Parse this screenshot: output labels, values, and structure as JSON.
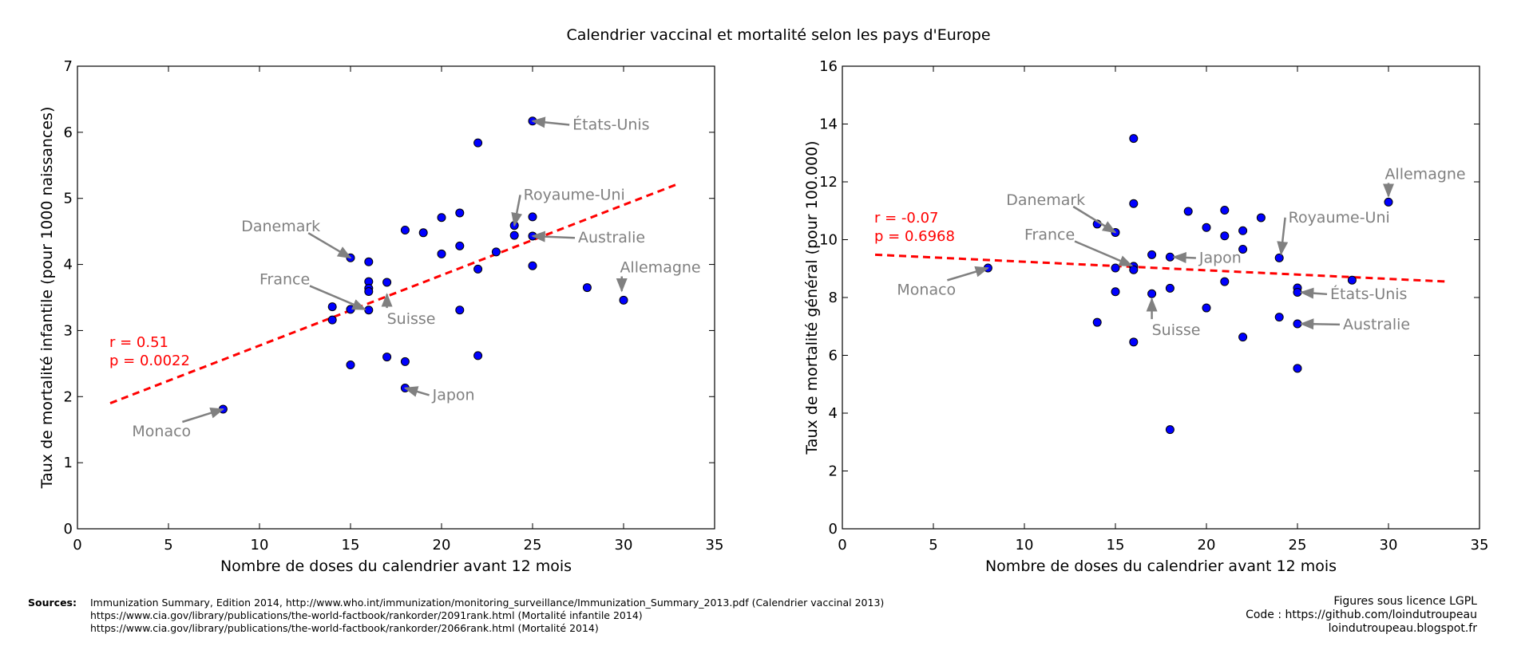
{
  "title": "Calendrier vaccinal et mortalité selon les pays d'Europe",
  "colors": {
    "point": "#0000ff",
    "regression": "#ff0000",
    "annotation": "#808080",
    "stats_text": "#ff0000"
  },
  "chart_data": [
    {
      "type": "scatter",
      "xlabel": "Nombre de doses du calendrier avant 12 mois",
      "ylabel": "Taux de mortalité infantile (pour 1000 naissances)",
      "xlim": [
        0,
        35
      ],
      "ylim": [
        0,
        7
      ],
      "xticks": [
        0,
        5,
        10,
        15,
        20,
        25,
        30,
        35
      ],
      "yticks": [
        0,
        1,
        2,
        3,
        4,
        5,
        6,
        7
      ],
      "grid": false,
      "stats": {
        "r": "r = 0.51",
        "p": "p = 0.0022"
      },
      "regression_line": {
        "x": [
          1.8,
          33
        ],
        "y": [
          1.9,
          5.22
        ]
      },
      "points": [
        {
          "x": 8,
          "y": 1.81
        },
        {
          "x": 14,
          "y": 3.16
        },
        {
          "x": 14,
          "y": 3.36
        },
        {
          "x": 15,
          "y": 4.1
        },
        {
          "x": 15,
          "y": 3.32
        },
        {
          "x": 15,
          "y": 2.48
        },
        {
          "x": 16,
          "y": 4.04
        },
        {
          "x": 16,
          "y": 3.74
        },
        {
          "x": 16,
          "y": 3.64
        },
        {
          "x": 16,
          "y": 3.59
        },
        {
          "x": 16,
          "y": 3.31
        },
        {
          "x": 17,
          "y": 3.73
        },
        {
          "x": 17,
          "y": 2.6
        },
        {
          "x": 18,
          "y": 4.52
        },
        {
          "x": 18,
          "y": 2.53
        },
        {
          "x": 18,
          "y": 2.13
        },
        {
          "x": 19,
          "y": 4.48
        },
        {
          "x": 20,
          "y": 4.71
        },
        {
          "x": 20,
          "y": 4.16
        },
        {
          "x": 21,
          "y": 4.78
        },
        {
          "x": 21,
          "y": 4.28
        },
        {
          "x": 21,
          "y": 3.31
        },
        {
          "x": 22,
          "y": 5.84
        },
        {
          "x": 22,
          "y": 3.93
        },
        {
          "x": 22,
          "y": 2.62
        },
        {
          "x": 23,
          "y": 4.19
        },
        {
          "x": 24,
          "y": 4.59
        },
        {
          "x": 24,
          "y": 4.44
        },
        {
          "x": 25,
          "y": 6.17
        },
        {
          "x": 25,
          "y": 4.72
        },
        {
          "x": 25,
          "y": 4.43
        },
        {
          "x": 25,
          "y": 3.98
        },
        {
          "x": 28,
          "y": 3.65
        },
        {
          "x": 30,
          "y": 3.46
        }
      ],
      "annotations": [
        {
          "label": "Monaco",
          "x": 8,
          "y": 1.81,
          "tx": 3,
          "ty": 1.4,
          "anchor": "start"
        },
        {
          "label": "Danemark",
          "x": 15,
          "y": 4.1,
          "tx": 9,
          "ty": 4.5,
          "anchor": "start"
        },
        {
          "label": "France",
          "x": 15.8,
          "y": 3.32,
          "tx": 10,
          "ty": 3.7,
          "anchor": "start"
        },
        {
          "label": "Suisse",
          "x": 17,
          "y": 3.55,
          "tx": 17,
          "ty": 3.1,
          "anchor": "start"
        },
        {
          "label": "Japon",
          "x": 18,
          "y": 2.13,
          "tx": 19.5,
          "ty": 1.95,
          "anchor": "start"
        },
        {
          "label": "Royaume-Uni",
          "x": 24,
          "y": 4.59,
          "tx": 24.5,
          "ty": 4.98,
          "anchor": "start"
        },
        {
          "label": "Australie",
          "x": 25,
          "y": 4.43,
          "tx": 27.5,
          "ty": 4.33,
          "anchor": "start"
        },
        {
          "label": "États-Unis",
          "x": 25,
          "y": 6.17,
          "tx": 27.2,
          "ty": 6.04,
          "anchor": "start"
        },
        {
          "label": "Allemagne",
          "x": 29.9,
          "y": 3.6,
          "tx": 29.8,
          "ty": 3.88,
          "anchor": "start"
        }
      ]
    },
    {
      "type": "scatter",
      "xlabel": "Nombre de doses du calendrier avant 12 mois",
      "ylabel": "Taux de mortalité général (pour 100.000)",
      "xlim": [
        0,
        35
      ],
      "ylim": [
        0,
        16
      ],
      "xticks": [
        0,
        5,
        10,
        15,
        20,
        25,
        30,
        35
      ],
      "yticks": [
        0,
        2,
        4,
        6,
        8,
        10,
        12,
        14,
        16
      ],
      "grid": false,
      "stats": {
        "r": "r = -0.07",
        "p": "p = 0.6968"
      },
      "regression_line": {
        "x": [
          1.8,
          33.2
        ],
        "y": [
          9.48,
          8.55
        ]
      },
      "points": [
        {
          "x": 8,
          "y": 9.02
        },
        {
          "x": 14,
          "y": 10.54
        },
        {
          "x": 14,
          "y": 7.14
        },
        {
          "x": 15,
          "y": 10.25
        },
        {
          "x": 15,
          "y": 9.02
        },
        {
          "x": 15,
          "y": 8.2
        },
        {
          "x": 16,
          "y": 13.5
        },
        {
          "x": 16,
          "y": 11.25
        },
        {
          "x": 16,
          "y": 9.08
        },
        {
          "x": 16,
          "y": 8.96
        },
        {
          "x": 16,
          "y": 6.46
        },
        {
          "x": 17,
          "y": 9.48
        },
        {
          "x": 17,
          "y": 8.13
        },
        {
          "x": 18,
          "y": 9.4
        },
        {
          "x": 18,
          "y": 8.32
        },
        {
          "x": 18,
          "y": 3.43
        },
        {
          "x": 19,
          "y": 10.98
        },
        {
          "x": 20,
          "y": 10.42
        },
        {
          "x": 20,
          "y": 7.64
        },
        {
          "x": 21,
          "y": 11.02
        },
        {
          "x": 21,
          "y": 10.13
        },
        {
          "x": 21,
          "y": 8.55
        },
        {
          "x": 22,
          "y": 10.31
        },
        {
          "x": 22,
          "y": 9.67
        },
        {
          "x": 22,
          "y": 6.63
        },
        {
          "x": 23,
          "y": 10.76
        },
        {
          "x": 24,
          "y": 9.37
        },
        {
          "x": 24,
          "y": 7.32
        },
        {
          "x": 25,
          "y": 8.33
        },
        {
          "x": 25,
          "y": 8.18
        },
        {
          "x": 25,
          "y": 7.09
        },
        {
          "x": 25,
          "y": 5.55
        },
        {
          "x": 28,
          "y": 8.6
        },
        {
          "x": 30,
          "y": 11.3
        }
      ],
      "annotations": [
        {
          "label": "Monaco",
          "x": 8,
          "y": 9.02,
          "tx": 3,
          "ty": 8.1,
          "anchor": "start"
        },
        {
          "label": "Danemark",
          "x": 15,
          "y": 10.25,
          "tx": 9,
          "ty": 11.2,
          "anchor": "start"
        },
        {
          "label": "France",
          "x": 15.9,
          "y": 9.1,
          "tx": 10,
          "ty": 10.0,
          "anchor": "start"
        },
        {
          "label": "Suisse",
          "x": 17,
          "y": 7.95,
          "tx": 17,
          "ty": 6.7,
          "anchor": "start"
        },
        {
          "label": "Japon",
          "x": 18.2,
          "y": 9.4,
          "tx": 19.6,
          "ty": 9.2,
          "anchor": "start"
        },
        {
          "label": "Royaume-Uni",
          "x": 24.1,
          "y": 9.5,
          "tx": 24.5,
          "ty": 10.6,
          "anchor": "start"
        },
        {
          "label": "États-Unis",
          "x": 25.2,
          "y": 8.18,
          "tx": 26.8,
          "ty": 7.95,
          "anchor": "start"
        },
        {
          "label": "Australie",
          "x": 25.2,
          "y": 7.09,
          "tx": 27.5,
          "ty": 6.9,
          "anchor": "start"
        },
        {
          "label": "Allemagne",
          "x": 30,
          "y": 11.5,
          "tx": 29.8,
          "ty": 12.1,
          "anchor": "start"
        }
      ]
    }
  ],
  "footer": {
    "sources_label": "Sources:",
    "sources": [
      "Immunization Summary, Edition 2014, http://www.who.int/immunization/monitoring_surveillance/Immunization_Summary_2013.pdf (Calendrier vaccinal 2013)",
      "https://www.cia.gov/library/publications/the-world-factbook/rankorder/2091rank.html (Mortalité infantile 2014)",
      "https://www.cia.gov/library/publications/the-world-factbook/rankorder/2066rank.html (Mortalité 2014)"
    ],
    "credits": [
      "Figures sous licence LGPL",
      "Code : https://github.com/loindutroupeau",
      "loindutroupeau.blogspot.fr"
    ]
  }
}
